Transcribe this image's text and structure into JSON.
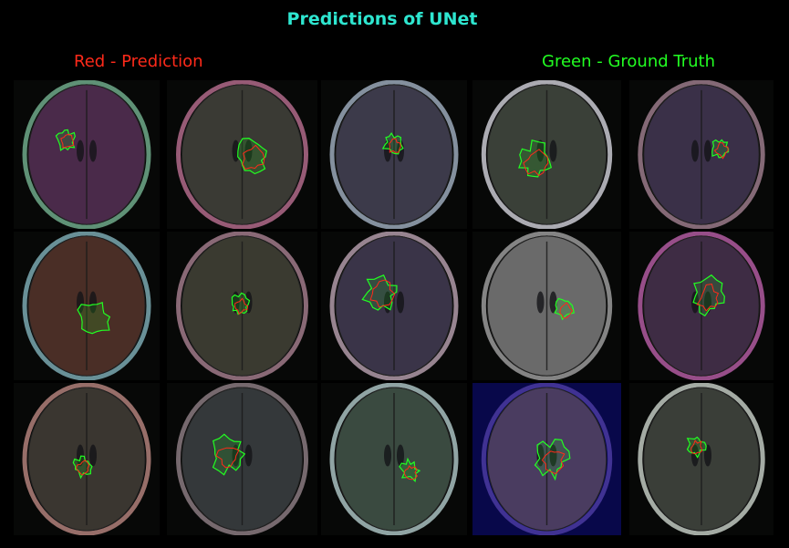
{
  "figure": {
    "title": "Predictions of UNet",
    "legend_prediction": "Red - Prediction",
    "legend_ground_truth": "Green - Ground Truth"
  },
  "colors": {
    "background": "#000000",
    "title": "#2ee6d0",
    "prediction": "#ff2a1a",
    "ground_truth": "#22ff22"
  },
  "grid": {
    "rows": 3,
    "cols": 5
  },
  "slices": [
    {
      "row": 0,
      "col": 0,
      "tint": "#4a2a4a",
      "rim": "#6fa98a",
      "pred": true,
      "gt": true
    },
    {
      "row": 0,
      "col": 1,
      "tint": "#3a3a34",
      "rim": "#b06a8a",
      "pred": true,
      "gt": true
    },
    {
      "row": 0,
      "col": 2,
      "tint": "#3c3a4a",
      "rim": "#9aa8b8",
      "pred": true,
      "gt": true
    },
    {
      "row": 0,
      "col": 3,
      "tint": "#3a4038",
      "rim": "#c8c8d0",
      "pred": true,
      "gt": true
    },
    {
      "row": 0,
      "col": 4,
      "tint": "#3a3048",
      "rim": "#9a7a8a",
      "pred": true,
      "gt": true
    },
    {
      "row": 1,
      "col": 0,
      "tint": "#4a2e26",
      "rim": "#7aa8b0",
      "pred": false,
      "gt": true
    },
    {
      "row": 1,
      "col": 1,
      "tint": "#3a3a30",
      "rim": "#a07a8a",
      "pred": true,
      "gt": true
    },
    {
      "row": 1,
      "col": 2,
      "tint": "#3a3448",
      "rim": "#b09aa8",
      "pred": true,
      "gt": true
    },
    {
      "row": 1,
      "col": 3,
      "tint": "#6a6a6a",
      "rim": "#9a9a9a",
      "pred": true,
      "gt": true
    },
    {
      "row": 1,
      "col": 4,
      "tint": "#3e2c44",
      "rim": "#b05aa0",
      "pred": true,
      "gt": true
    },
    {
      "row": 2,
      "col": 0,
      "tint": "#3a3630",
      "rim": "#b0807a",
      "pred": true,
      "gt": true
    },
    {
      "row": 2,
      "col": 1,
      "tint": "#34383a",
      "rim": "#8a7a80",
      "pred": true,
      "gt": true
    },
    {
      "row": 2,
      "col": 2,
      "tint": "#3a4a40",
      "rim": "#a8c0c0",
      "pred": true,
      "gt": true
    },
    {
      "row": 2,
      "col": 3,
      "tint": "#4a3c60",
      "rim": "#4a3aa0",
      "pred": true,
      "gt": true
    },
    {
      "row": 2,
      "col": 4,
      "tint": "#3a3e38",
      "rim": "#c0c8c0",
      "pred": true,
      "gt": true
    }
  ]
}
